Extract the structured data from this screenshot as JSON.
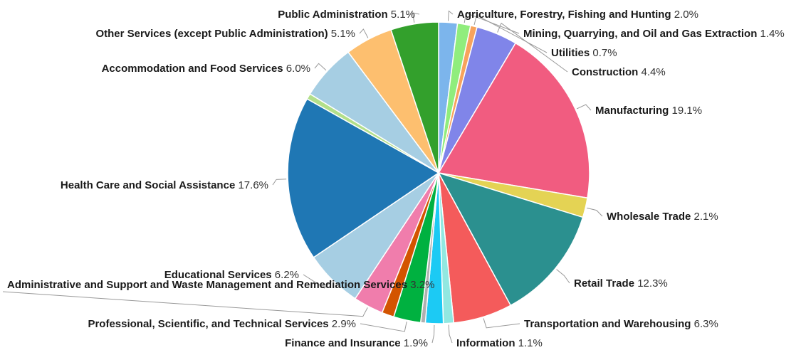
{
  "chart_data": {
    "type": "pie",
    "slices": [
      {
        "label": "Agriculture, Forestry, Fishing and Hunting",
        "value": 2.0,
        "display": "2.0%",
        "color": "#7cb5ec"
      },
      {
        "label": "Mining, Quarrying, and Oil and Gas Extraction",
        "value": 1.4,
        "display": "1.4%",
        "color": "#90ed7d"
      },
      {
        "label": "Utilities",
        "value": 0.7,
        "display": "0.7%",
        "color": "#f7a35c"
      },
      {
        "label": "Construction",
        "value": 4.4,
        "display": "4.4%",
        "color": "#8085e9"
      },
      {
        "label": "Manufacturing",
        "value": 19.1,
        "display": "19.1%",
        "color": "#f15c80"
      },
      {
        "label": "Wholesale Trade",
        "value": 2.1,
        "display": "2.1%",
        "color": "#e4d354"
      },
      {
        "label": "Retail Trade",
        "value": 12.3,
        "display": "12.3%",
        "color": "#2b908f"
      },
      {
        "label": "Transportation and Warehousing",
        "value": 6.3,
        "display": "6.3%",
        "color": "#f45b5b"
      },
      {
        "label": "Information",
        "value": 1.1,
        "display": "1.1%",
        "color": "#91e8e1"
      },
      {
        "label": "Finance and Insurance",
        "value": 1.9,
        "display": "1.9%",
        "color": "#1ccaf4"
      },
      {
        "label": "",
        "value": 0.5,
        "display": "",
        "color": "#b0b0b0"
      },
      {
        "label": "Professional, Scientific, and Technical Services",
        "value": 2.9,
        "display": "2.9%",
        "color": "#00b140"
      },
      {
        "label": "",
        "value": 1.3,
        "display": "",
        "color": "#d35400"
      },
      {
        "label": "Administrative and Support and Waste Management and Remediation Services",
        "value": 3.2,
        "display": "3.2%",
        "color": "#f07dac"
      },
      {
        "label": "Educational Services",
        "value": 6.2,
        "display": "6.2%",
        "color": "#a6cee3"
      },
      {
        "label": "Health Care and Social Assistance",
        "value": 17.6,
        "display": "17.6%",
        "color": "#1f77b4"
      },
      {
        "label": "",
        "value": 0.6,
        "display": "",
        "color": "#b2df8a"
      },
      {
        "label": "Accommodation and Food Services",
        "value": 6.0,
        "display": "6.0%",
        "color": "#a6cee3"
      },
      {
        "label": "Other Services (except Public Administration)",
        "value": 5.1,
        "display": "5.1%",
        "color": "#fdbf6f"
      },
      {
        "label": "Public Administration",
        "value": 5.1,
        "display": "5.1%",
        "color": "#33a02c"
      }
    ]
  }
}
